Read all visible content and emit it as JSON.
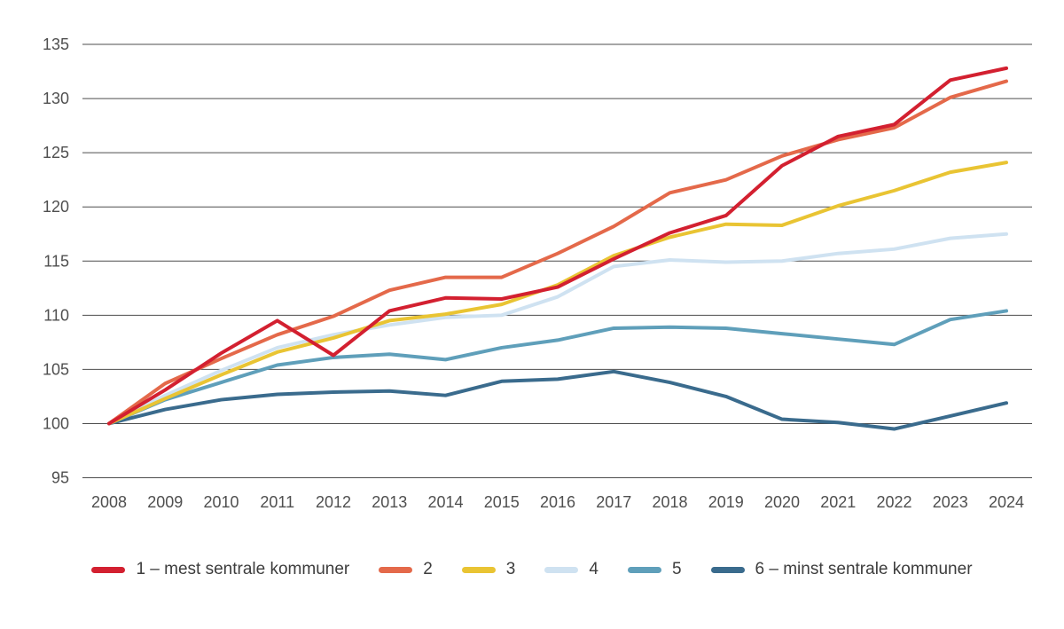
{
  "chart_data": {
    "type": "line",
    "title": "",
    "xlabel": "",
    "ylabel": "",
    "x": [
      2008,
      2009,
      2010,
      2011,
      2012,
      2013,
      2014,
      2015,
      2016,
      2017,
      2018,
      2019,
      2020,
      2021,
      2022,
      2023,
      2024
    ],
    "series": [
      {
        "name": "1 – mest sentrale kommuner",
        "color": "#d32030",
        "values": [
          100,
          103.1,
          106.5,
          109.5,
          106.3,
          110.4,
          111.6,
          111.5,
          112.6,
          115.2,
          117.6,
          119.2,
          123.8,
          126.5,
          127.6,
          131.7,
          132.8
        ]
      },
      {
        "name": "2",
        "color": "#e4694a",
        "values": [
          100,
          103.7,
          106.0,
          108.2,
          109.9,
          112.3,
          113.5,
          113.5,
          115.7,
          118.2,
          121.3,
          122.5,
          124.7,
          126.2,
          127.3,
          130.1,
          131.6
        ]
      },
      {
        "name": "3",
        "color": "#e9c433",
        "values": [
          100,
          102.3,
          104.5,
          106.6,
          107.9,
          109.5,
          110.1,
          111.0,
          112.8,
          115.5,
          117.2,
          118.4,
          118.3,
          120.1,
          121.5,
          123.2,
          124.1
        ]
      },
      {
        "name": "4",
        "color": "#cfe2f1",
        "values": [
          100,
          102.6,
          104.9,
          107.0,
          108.2,
          109.1,
          109.8,
          110.0,
          111.7,
          114.5,
          115.1,
          114.9,
          115.0,
          115.7,
          116.1,
          117.1,
          117.5
        ]
      },
      {
        "name": "5",
        "color": "#5f9fba",
        "values": [
          100,
          102.2,
          103.8,
          105.4,
          106.1,
          106.4,
          105.9,
          107.0,
          107.7,
          108.8,
          108.9,
          108.8,
          108.3,
          107.8,
          107.3,
          109.6,
          110.4
        ]
      },
      {
        "name": "6 – minst sentrale kommuner",
        "color": "#3a6b8d",
        "values": [
          100,
          101.3,
          102.2,
          102.7,
          102.9,
          103.0,
          102.6,
          103.9,
          104.1,
          104.8,
          103.8,
          102.5,
          100.4,
          100.1,
          99.5,
          100.7,
          101.9
        ]
      }
    ],
    "ylim": [
      95,
      135
    ],
    "ytick_step": 5,
    "yticks": [
      95,
      100,
      105,
      110,
      115,
      120,
      125,
      130,
      135
    ],
    "grid": "horizontal",
    "legend_position": "bottom",
    "colors": {
      "background": "#ffffff",
      "gridline": "#4d4d4d",
      "axis_label": "#4f4f4f",
      "legend_text": "#3d3d3d"
    }
  }
}
